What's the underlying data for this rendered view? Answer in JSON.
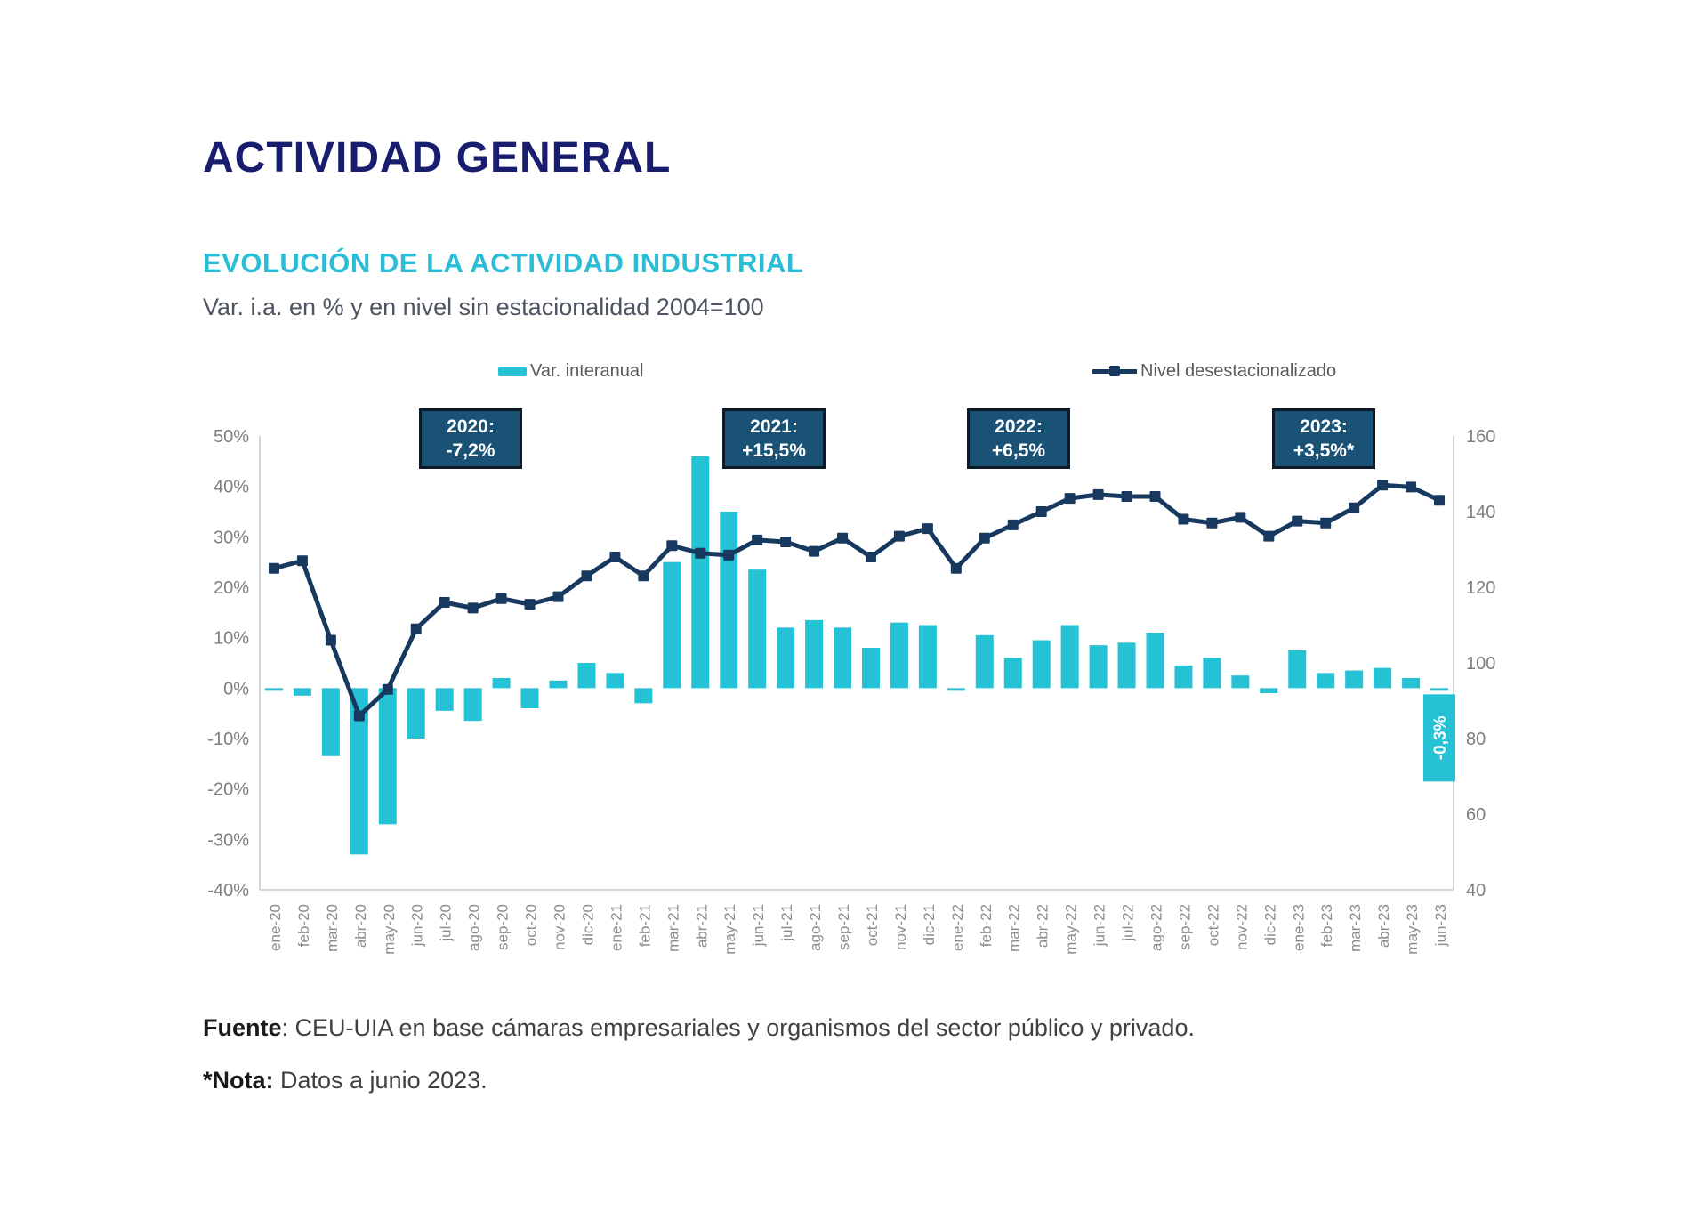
{
  "header": {
    "title": "ACTIVIDAD GENERAL"
  },
  "chart": {
    "title": "EVOLUCIÓN DE LA ACTIVIDAD INDUSTRIAL",
    "subtitle": "Var. i.a. en % y en nivel sin estacionalidad 2004=100"
  },
  "legend": {
    "bar_label": "Var. interanual",
    "line_label": "Nivel desestacionalizado"
  },
  "chart_data": {
    "type": "bar+line combo",
    "categories": [
      "ene-20",
      "feb-20",
      "mar-20",
      "abr-20",
      "may-20",
      "jun-20",
      "jul-20",
      "ago-20",
      "sep-20",
      "oct-20",
      "nov-20",
      "dic-20",
      "ene-21",
      "feb-21",
      "mar-21",
      "abr-21",
      "may-21",
      "jun-21",
      "jul-21",
      "ago-21",
      "sep-21",
      "oct-21",
      "nov-21",
      "dic-21",
      "ene-22",
      "feb-22",
      "mar-22",
      "abr-22",
      "may-22",
      "jun-22",
      "jul-22",
      "ago-22",
      "sep-22",
      "oct-22",
      "nov-22",
      "dic-22",
      "ene-23",
      "feb-23",
      "mar-23",
      "abr-23",
      "may-23",
      "jun-23"
    ],
    "series": [
      {
        "name": "Var. interanual",
        "type": "bar",
        "axis": "left",
        "unit": "%",
        "color": "#25c1d5",
        "values": [
          -0.3,
          -1.5,
          -13.5,
          -33,
          -27,
          -10,
          -4.5,
          -6.5,
          2,
          -4,
          1.5,
          5,
          3,
          -3,
          25,
          46,
          35,
          23.5,
          12,
          13.5,
          12,
          8,
          13,
          12.5,
          -0.5,
          10.5,
          6,
          9.5,
          12.5,
          8.5,
          9,
          11,
          4.5,
          6,
          2.5,
          -1,
          7.5,
          3,
          3.5,
          4,
          2,
          -0.3
        ]
      },
      {
        "name": "Nivel desestacionalizado",
        "type": "line",
        "axis": "right",
        "unit": "index 2004=100",
        "color": "#17395f",
        "values": [
          125,
          127,
          106,
          86,
          93,
          109,
          116,
          114.5,
          117,
          115.5,
          117.5,
          123,
          128,
          123,
          131,
          129,
          128.5,
          132.5,
          132,
          129.5,
          133,
          128,
          133.5,
          135.5,
          125,
          133,
          136.5,
          140,
          143.5,
          144.5,
          144,
          144,
          138,
          137,
          138.5,
          133.5,
          137.5,
          137,
          141,
          147,
          146.5,
          143
        ]
      }
    ],
    "left_axis": {
      "min": -40,
      "max": 50,
      "step": 10,
      "tick_labels": [
        "50%",
        "40%",
        "30%",
        "20%",
        "10%",
        "0%",
        "-10%",
        "-20%",
        "-30%",
        "-40%"
      ]
    },
    "right_axis": {
      "min": 40,
      "max": 160,
      "step": 20,
      "tick_labels": [
        "160",
        "140",
        "120",
        "100",
        "80",
        "60",
        "40"
      ]
    },
    "grid": "off",
    "legend_position": "top",
    "annotations": [
      {
        "line1": "2020:",
        "line2": "-7,2%"
      },
      {
        "line1": "2021:",
        "line2": "+15,5%"
      },
      {
        "line1": "2022:",
        "line2": "+6,5%"
      },
      {
        "line1": "2023:",
        "line2": "+3,5%*"
      }
    ],
    "last_point_callout": "-0,3%"
  },
  "footer": {
    "fuente_bold": "Fuente",
    "fuente_rest": ": CEU-UIA en base cámaras empresariales y organismos del sector público y privado.",
    "nota_bold": "*Nota:",
    "nota_rest": " Datos a junio 2023."
  }
}
